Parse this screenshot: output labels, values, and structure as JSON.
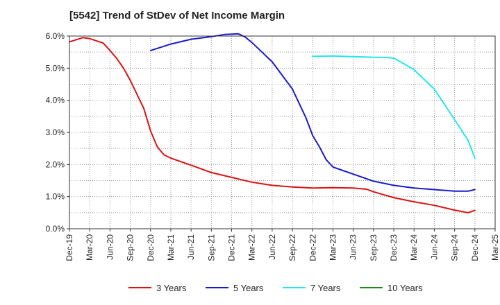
{
  "chart_data": {
    "type": "line",
    "title": "[5542]  Trend of StDev of Net Income Margin",
    "xlabel": "",
    "ylabel": "",
    "x_ticks": [
      "Dec-19",
      "Mar-20",
      "Jun-20",
      "Sep-20",
      "Dec-20",
      "Mar-21",
      "Jun-21",
      "Sep-21",
      "Dec-21",
      "Mar-22",
      "Jun-22",
      "Sep-22",
      "Dec-22",
      "Mar-23",
      "Jun-23",
      "Sep-23",
      "Dec-23",
      "Mar-24",
      "Jun-24",
      "Sep-24",
      "Dec-24",
      "Mar-25"
    ],
    "y_ticks": [
      "0.0%",
      "1.0%",
      "2.0%",
      "3.0%",
      "4.0%",
      "5.0%",
      "6.0%"
    ],
    "ylim": [
      0,
      6.0
    ],
    "grid": true,
    "legend_position": "bottom",
    "series": [
      {
        "name": "3 Years",
        "color": "#dd1111",
        "points": [
          [
            "Dec-19",
            5.82
          ],
          [
            "Feb-20",
            5.95
          ],
          [
            "Mar-20",
            5.92
          ],
          [
            "May-20",
            5.78
          ],
          [
            "Jun-20",
            5.55
          ],
          [
            "Jul-20",
            5.3
          ],
          [
            "Aug-20",
            5.0
          ],
          [
            "Sep-20",
            4.62
          ],
          [
            "Nov-20",
            3.75
          ],
          [
            "Dec-20",
            3.05
          ],
          [
            "Jan-21",
            2.55
          ],
          [
            "Feb-21",
            2.3
          ],
          [
            "Mar-21",
            2.2
          ],
          [
            "Jun-21",
            1.98
          ],
          [
            "Sep-21",
            1.75
          ],
          [
            "Dec-21",
            1.6
          ],
          [
            "Mar-22",
            1.45
          ],
          [
            "Jun-22",
            1.35
          ],
          [
            "Sep-22",
            1.3
          ],
          [
            "Dec-22",
            1.27
          ],
          [
            "Mar-23",
            1.28
          ],
          [
            "Jun-23",
            1.27
          ],
          [
            "Aug-23",
            1.23
          ],
          [
            "Sep-23",
            1.15
          ],
          [
            "Dec-23",
            0.97
          ],
          [
            "Mar-24",
            0.84
          ],
          [
            "Jun-24",
            0.73
          ],
          [
            "Sep-24",
            0.58
          ],
          [
            "Nov-24",
            0.5
          ],
          [
            "Dec-24",
            0.57
          ]
        ]
      },
      {
        "name": "5 Years",
        "color": "#1a1acc",
        "points": [
          [
            "Dec-20",
            5.55
          ],
          [
            "Mar-21",
            5.75
          ],
          [
            "Jun-21",
            5.9
          ],
          [
            "Sep-21",
            5.98
          ],
          [
            "Nov-21",
            6.05
          ],
          [
            "Jan-22",
            6.07
          ],
          [
            "Feb-22",
            5.97
          ],
          [
            "Mar-22",
            5.8
          ],
          [
            "Jun-22",
            5.2
          ],
          [
            "Sep-22",
            4.35
          ],
          [
            "Nov-22",
            3.45
          ],
          [
            "Dec-22",
            2.9
          ],
          [
            "Jan-23",
            2.55
          ],
          [
            "Feb-23",
            2.15
          ],
          [
            "Mar-23",
            1.92
          ],
          [
            "Jun-23",
            1.7
          ],
          [
            "Sep-23",
            1.48
          ],
          [
            "Dec-23",
            1.35
          ],
          [
            "Mar-24",
            1.27
          ],
          [
            "Jun-24",
            1.22
          ],
          [
            "Sep-24",
            1.17
          ],
          [
            "Nov-24",
            1.17
          ],
          [
            "Dec-24",
            1.22
          ]
        ]
      },
      {
        "name": "7 Years",
        "color": "#22e8ee",
        "points": [
          [
            "Dec-22",
            5.37
          ],
          [
            "Mar-23",
            5.38
          ],
          [
            "Jun-23",
            5.36
          ],
          [
            "Sep-23",
            5.34
          ],
          [
            "Nov-23",
            5.33
          ],
          [
            "Dec-23",
            5.31
          ],
          [
            "Jan-24",
            5.2
          ],
          [
            "Mar-24",
            4.95
          ],
          [
            "Jun-24",
            4.35
          ],
          [
            "Sep-24",
            3.4
          ],
          [
            "Nov-24",
            2.75
          ],
          [
            "Dec-24",
            2.2
          ]
        ]
      },
      {
        "name": "10 Years",
        "color": "#1e8a1e",
        "points": []
      }
    ]
  }
}
